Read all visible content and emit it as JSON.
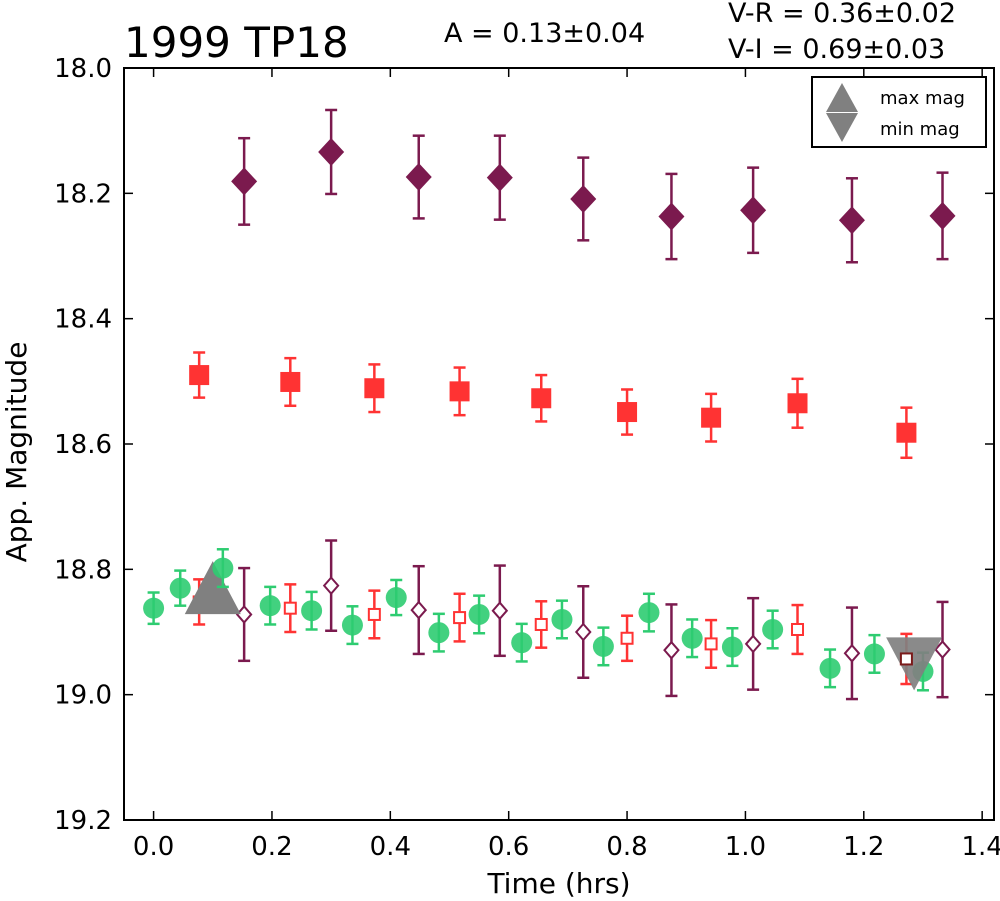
{
  "chart_data": {
    "type": "scatter",
    "title": "1999 TP18",
    "amplitude": "A  = 0.13±0.04",
    "colors_text": [
      "V-R = 0.36±0.02",
      "V-I  = 0.69±0.03"
    ],
    "xlabel": "Time (hrs)",
    "ylabel": "App. Magnitude",
    "xlim": [
      -0.05,
      1.42
    ],
    "ylim": [
      19.2,
      18.0
    ],
    "y_inverted": true,
    "xticks": [
      "0.0",
      "0.2",
      "0.4",
      "0.6",
      "0.8",
      "1.0",
      "1.2",
      "1.4"
    ],
    "yticks": [
      "18.0",
      "18.2",
      "18.4",
      "18.6",
      "18.8",
      "19.0",
      "19.2"
    ],
    "grid": false,
    "legend_position": "top-right",
    "legend": [
      "max mag",
      "min mag"
    ],
    "colors": {
      "v_band": "#2ecc71",
      "r_band": "#ff3333",
      "i_band": "#7b1a4e",
      "marker_gray": "#808080"
    },
    "series": [
      {
        "marker": "square-filled",
        "color": "#ff3333",
        "x": [
          0.077,
          0.231,
          0.373,
          0.517,
          0.655,
          0.8,
          0.942,
          1.088,
          1.272
        ],
        "y": [
          18.49,
          18.501,
          18.511,
          18.516,
          18.527,
          18.549,
          18.558,
          18.535,
          18.582
        ],
        "err": [
          0.036,
          0.038,
          0.038,
          0.038,
          0.037,
          0.036,
          0.038,
          0.039,
          0.04
        ]
      },
      {
        "marker": "diamond-filled",
        "color": "#7b1a4e",
        "x": [
          0.153,
          0.3,
          0.448,
          0.585,
          0.726,
          0.875,
          1.013,
          1.18,
          1.333
        ],
        "y": [
          18.181,
          18.134,
          18.174,
          18.175,
          18.209,
          18.237,
          18.227,
          18.243,
          18.236
        ],
        "err": [
          0.069,
          0.067,
          0.066,
          0.067,
          0.066,
          0.068,
          0.068,
          0.067,
          0.069
        ]
      },
      {
        "marker": "circle-filled",
        "color": "#2ecc71",
        "x": [
          0.0,
          0.045,
          0.117,
          0.197,
          0.267,
          0.336,
          0.41,
          0.482,
          0.55,
          0.622,
          0.69,
          0.76,
          0.837,
          0.91,
          0.978,
          1.046,
          1.143,
          1.218,
          1.3
        ],
        "y": [
          18.862,
          18.83,
          18.798,
          18.858,
          18.866,
          18.889,
          18.845,
          18.901,
          18.872,
          18.917,
          18.88,
          18.923,
          18.869,
          18.91,
          18.924,
          18.896,
          18.958,
          18.935,
          18.963
        ],
        "err": [
          0.025,
          0.028,
          0.03,
          0.03,
          0.03,
          0.03,
          0.028,
          0.03,
          0.03,
          0.03,
          0.03,
          0.03,
          0.03,
          0.03,
          0.03,
          0.03,
          0.03,
          0.03,
          0.03
        ]
      },
      {
        "marker": "square-open",
        "color": "#ff3333",
        "x": [
          0.077,
          0.231,
          0.373,
          0.517,
          0.655,
          0.8,
          0.942,
          1.088,
          1.272
        ],
        "y": [
          18.852,
          18.862,
          18.872,
          18.877,
          18.888,
          18.91,
          18.919,
          18.896,
          18.943
        ],
        "err": [
          0.036,
          0.038,
          0.038,
          0.038,
          0.037,
          0.036,
          0.038,
          0.039,
          0.04
        ]
      },
      {
        "marker": "diamond-open",
        "color": "#7b1a4e",
        "x": [
          0.153,
          0.3,
          0.448,
          0.585,
          0.726,
          0.875,
          1.013,
          1.18,
          1.333
        ],
        "y": [
          18.872,
          18.826,
          18.865,
          18.866,
          18.9,
          18.929,
          18.919,
          18.934,
          18.928
        ],
        "err": [
          0.074,
          0.072,
          0.07,
          0.072,
          0.073,
          0.073,
          0.073,
          0.073,
          0.076
        ]
      }
    ],
    "max_mag_marker": {
      "x": 0.1,
      "y": 18.83
    },
    "min_mag_marker": {
      "x": 1.285,
      "y": 18.95
    }
  }
}
